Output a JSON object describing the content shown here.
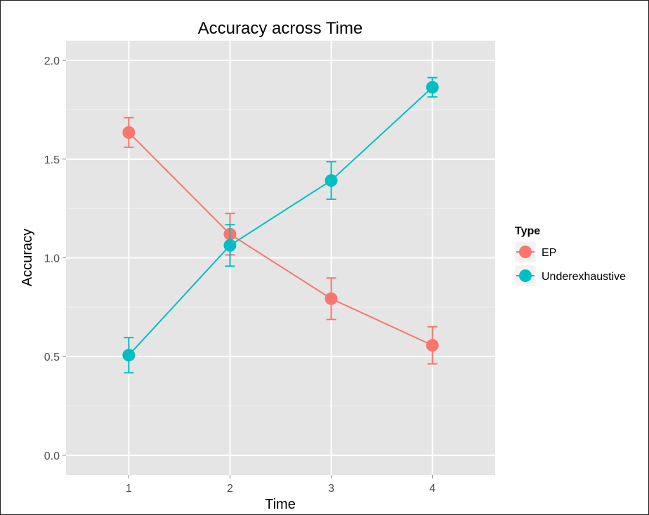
{
  "chart_data": {
    "type": "line",
    "title": "Accuracy across Time",
    "xlabel": "Time",
    "ylabel": "Accuracy",
    "x": [
      1,
      2,
      3,
      4
    ],
    "xlim": [
      0.38,
      4.62
    ],
    "ylim": [
      -0.1,
      2.1
    ],
    "x_ticks": [
      1,
      2,
      3,
      4
    ],
    "y_ticks": [
      0.0,
      0.5,
      1.0,
      1.5,
      2.0
    ],
    "y_tick_labels": [
      "0.0",
      "0.5",
      "1.0",
      "1.5",
      "2.0"
    ],
    "grid": true,
    "legend": {
      "title": "Type",
      "position": "right"
    },
    "series": [
      {
        "name": "EP",
        "color": "#F8766D",
        "values": [
          1.635,
          1.12,
          0.793,
          0.557
        ],
        "error_low": [
          1.56,
          1.015,
          0.688,
          0.463
        ],
        "error_high": [
          1.71,
          1.225,
          0.898,
          0.651
        ]
      },
      {
        "name": "Underexhaustive",
        "color": "#00BFC4",
        "values": [
          0.507,
          1.063,
          1.392,
          1.864
        ],
        "error_low": [
          0.418,
          0.958,
          1.297,
          1.815
        ],
        "error_high": [
          0.596,
          1.168,
          1.487,
          1.913
        ]
      }
    ]
  }
}
